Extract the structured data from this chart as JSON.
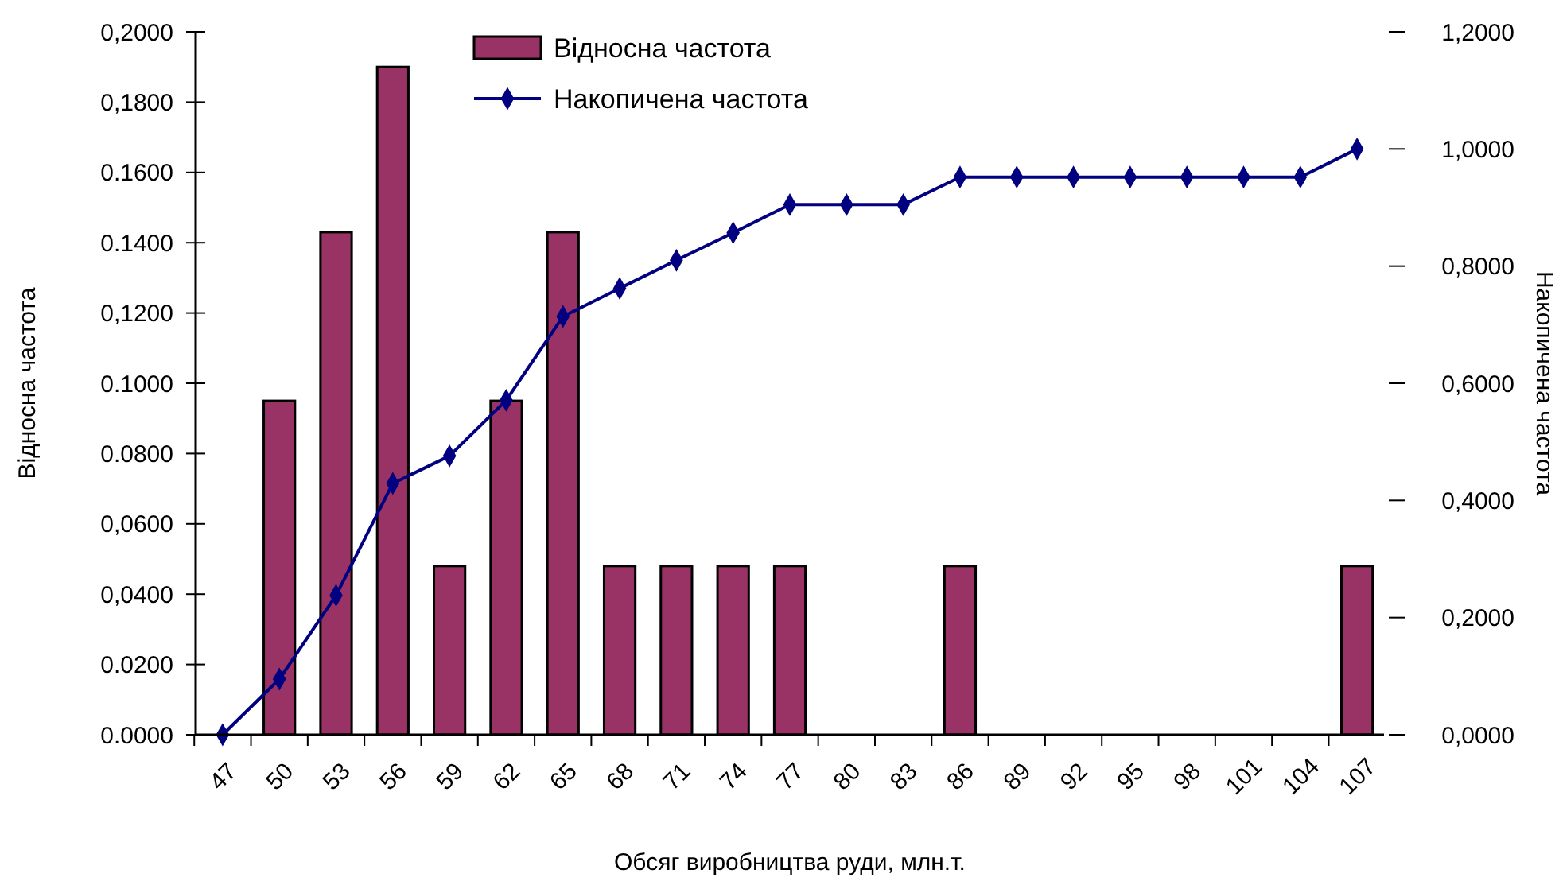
{
  "chart_data": {
    "type": "bar",
    "xlabel": "Обсяг виробництва руди, млн.т.",
    "ylabel": "Відносна частота",
    "y2label": "Накопичена частота",
    "categories": [
      "47",
      "50",
      "53",
      "56",
      "59",
      "62",
      "65",
      "68",
      "71",
      "74",
      "77",
      "80",
      "83",
      "86",
      "89",
      "92",
      "95",
      "98",
      "101",
      "104",
      "107"
    ],
    "series": [
      {
        "name": "Відносна частота",
        "color": "#993366",
        "values": [
          0,
          0.095,
          0.143,
          0.19,
          0.048,
          0.095,
          0.143,
          0.048,
          0.048,
          0.048,
          0.048,
          0,
          0,
          0.048,
          0,
          0,
          0,
          0,
          0,
          0,
          0.048
        ]
      },
      {
        "name": "Накопичена частота",
        "type": "line",
        "axis": "y2",
        "color": "#000080",
        "values": [
          0,
          0.095,
          0.238,
          0.429,
          0.476,
          0.571,
          0.714,
          0.762,
          0.81,
          0.857,
          0.905,
          0.905,
          0.905,
          0.952,
          0.952,
          0.952,
          0.952,
          0.952,
          0.952,
          0.952,
          1
        ]
      }
    ],
    "ylim": [
      0,
      0.2
    ],
    "yticks": [
      {
        "value": 0,
        "label": "0.0000"
      },
      {
        "value": 0.02,
        "label": "0.0200"
      },
      {
        "value": 0.04,
        "label": "0,0400"
      },
      {
        "value": 0.06,
        "label": "0,0600"
      },
      {
        "value": 0.08,
        "label": "0.0800"
      },
      {
        "value": 0.1,
        "label": "0.1000"
      },
      {
        "value": 0.12,
        "label": "0,1200"
      },
      {
        "value": 0.14,
        "label": "0.1400"
      },
      {
        "value": 0.16,
        "label": "0.1600"
      },
      {
        "value": 0.18,
        "label": "0,1800"
      },
      {
        "value": 0.2,
        "label": "0,2000"
      }
    ],
    "y2lim": [
      0,
      1.2
    ],
    "y2ticks": [
      {
        "value": 0,
        "label": "0,0000"
      },
      {
        "value": 0.2,
        "label": "0,2000"
      },
      {
        "value": 0.4,
        "label": "0,4000"
      },
      {
        "value": 0.6,
        "label": "0,6000"
      },
      {
        "value": 0.8,
        "label": "0,8000"
      },
      {
        "value": 1,
        "label": "1,0000"
      },
      {
        "value": 1.2,
        "label": "1,2000"
      }
    ],
    "marker": "diamond",
    "legend": "top",
    "grid": false
  }
}
